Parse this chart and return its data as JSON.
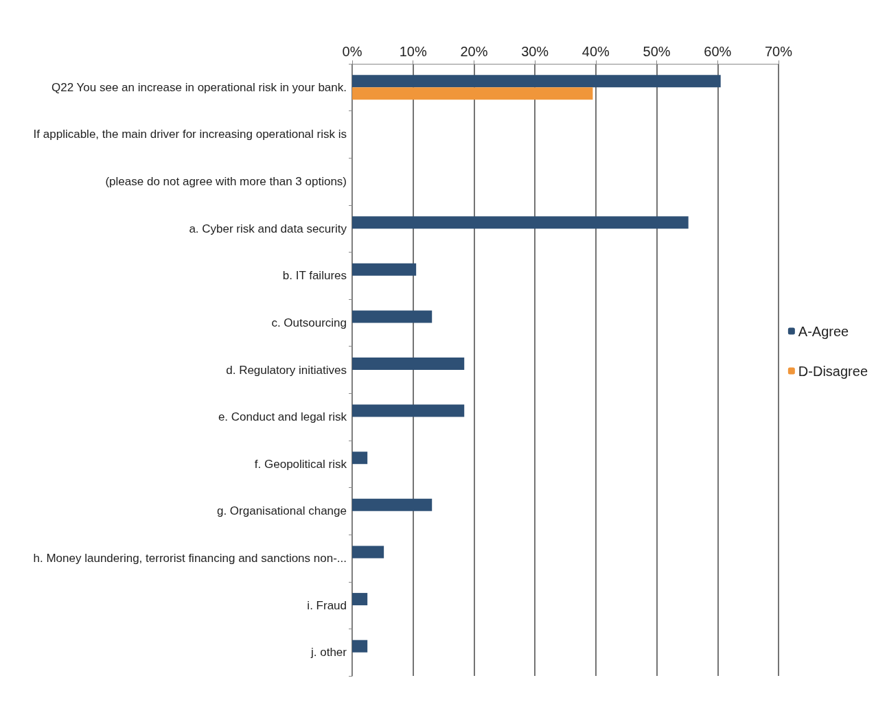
{
  "chart_data": {
    "type": "bar",
    "orientation": "horizontal",
    "categories": [
      "Q22 You see an increase in operational risk in your bank.",
      "If applicable, the main driver for increasing operational risk is",
      "(please do not agree with more than 3 options)",
      "a. Cyber risk and data security",
      "b. IT failures",
      "c. Outsourcing",
      "d. Regulatory initiatives",
      "e. Conduct and legal risk",
      "f. Geopolitical risk",
      "g. Organisational change",
      "h. Money laundering, terrorist financing and sanctions non-...",
      "i. Fraud",
      "j. other"
    ],
    "series": [
      {
        "name": "A-Agree",
        "color": "#2e5075",
        "values": [
          60.5,
          null,
          null,
          55.2,
          10.5,
          13.1,
          18.4,
          18.4,
          2.5,
          13.1,
          5.2,
          2.5,
          2.5
        ]
      },
      {
        "name": "D-Disagree",
        "color": "#f0963a",
        "values": [
          39.5,
          null,
          null,
          null,
          null,
          null,
          null,
          null,
          null,
          null,
          null,
          null,
          null
        ]
      }
    ],
    "xlim": [
      0,
      70
    ],
    "xticks": [
      {
        "value": 0,
        "label": "0%"
      },
      {
        "value": 10,
        "label": "10%"
      },
      {
        "value": 20,
        "label": "20%"
      },
      {
        "value": 30,
        "label": "30%"
      },
      {
        "value": 40,
        "label": "40%"
      },
      {
        "value": 50,
        "label": "50%"
      },
      {
        "value": 60,
        "label": "60%"
      },
      {
        "value": 70,
        "label": "70%"
      }
    ],
    "grid": "x",
    "legend": "right"
  }
}
